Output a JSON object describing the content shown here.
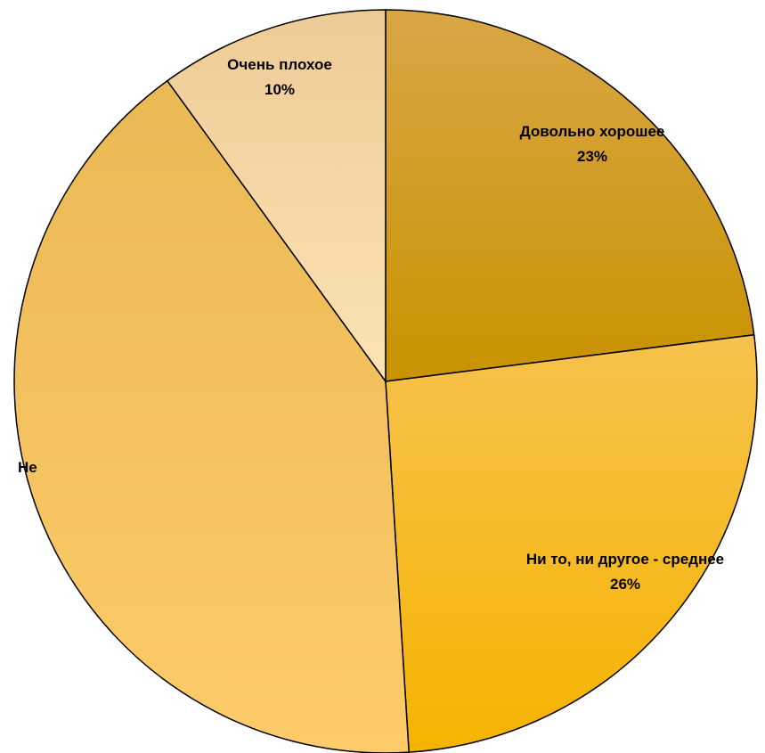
{
  "chart_data": {
    "type": "pie",
    "title": "",
    "start_angle_deg": 0,
    "direction": "clockwise",
    "slices": [
      {
        "name": "Довольно хорошее",
        "value": 23,
        "label": "Довольно хорошее",
        "percent_label": "23%",
        "color": "#C99200",
        "color_light": "#D9A646"
      },
      {
        "name": "Ни то, ни другое - среднее",
        "value": 26,
        "label": "Ни то, ни другое - среднее",
        "percent_label": "26%",
        "color": "#F5B300",
        "color_light": "#F7C24E"
      },
      {
        "name": "Не",
        "value": 41,
        "label": "Не",
        "percent_label": "",
        "color": "#FDCB6A",
        "color_light": "#E9B954"
      },
      {
        "name": "Очень плохое",
        "value": 10,
        "label": "Очень плохое",
        "percent_label": "10%",
        "color": "#FDE2B4",
        "color_light": "#EDCB96"
      }
    ]
  }
}
